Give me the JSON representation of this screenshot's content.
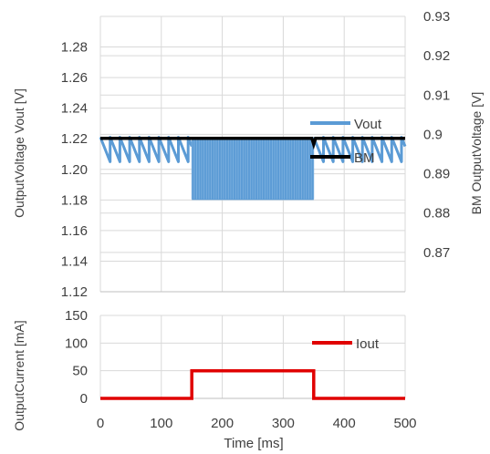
{
  "chart_data": [
    {
      "type": "line",
      "title": "",
      "xlabel": "",
      "x_range": [
        0,
        500
      ],
      "x_ticks": [
        0,
        100,
        200,
        300,
        400,
        500
      ],
      "y_left": {
        "label": "OutputVoltage Vout [V]",
        "ylim": [
          1.12,
          1.3
        ],
        "ticks": [
          1.12,
          1.14,
          1.16,
          1.18,
          1.2,
          1.22,
          1.24,
          1.26,
          1.28
        ],
        "tick_labels": [
          "1.12",
          "1.14",
          "1.16",
          "1.18",
          "1.20",
          "1.22",
          "1.24",
          "1.26",
          "1.28"
        ]
      },
      "y_right": {
        "label": "BM OutputVoltage [V]",
        "ylim": [
          0.86,
          0.93
        ],
        "ticks": [
          0.87,
          0.88,
          0.89,
          0.9,
          0.91,
          0.92,
          0.93
        ],
        "tick_labels": [
          "0.87",
          "0.88",
          "0.89",
          "0.9",
          "0.91",
          "0.92",
          "0.93"
        ]
      },
      "grid": true,
      "legend_position": "right",
      "series": [
        {
          "name": "Vout",
          "axis": "left",
          "color": "#5b9bd5",
          "pattern": "sawtooth ripple between 1.205 and 1.221 V; dense ripple between 1.18 and 1.221 V from 150 to 350 ms",
          "sawtooth_period_ms": 16,
          "low": 1.205,
          "high": 1.221,
          "load_window_ms": [
            150,
            350
          ],
          "load_low": 1.18
        },
        {
          "name": "BM",
          "axis": "right",
          "color": "#000000",
          "value": 0.899,
          "dip_at_ms": 350,
          "dip_value": 0.8975
        }
      ]
    },
    {
      "type": "line",
      "title": "",
      "xlabel": "Time [ms]",
      "ylabel": "OutputCurrent [mA]",
      "x_range": [
        0,
        500
      ],
      "x_ticks": [
        0,
        100,
        200,
        300,
        400,
        500
      ],
      "x_tick_labels": [
        "0",
        "100",
        "200",
        "300",
        "400",
        "500"
      ],
      "ylim": [
        0,
        150
      ],
      "y_ticks": [
        0,
        50,
        100,
        150
      ],
      "y_tick_labels": [
        "0",
        "50",
        "100",
        "150"
      ],
      "grid": true,
      "legend_position": "top-right",
      "series": [
        {
          "name": "Iout",
          "color": "#e00000",
          "x": [
            0,
            150,
            150,
            350,
            350,
            500
          ],
          "y": [
            0,
            0,
            50,
            50,
            0,
            0
          ]
        }
      ]
    }
  ]
}
